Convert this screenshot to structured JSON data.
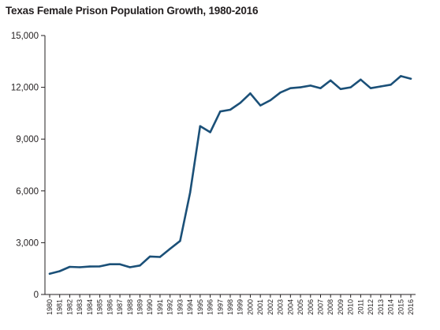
{
  "chart_data": {
    "type": "line",
    "title": "Texas Female Prison Population Growth, 1980-2016",
    "xlabel": "",
    "ylabel": "",
    "ylim": [
      0,
      15000
    ],
    "yticks": [
      "0",
      "3,000",
      "6,000",
      "9,000",
      "12,000",
      "15,000"
    ],
    "ytick_values": [
      0,
      3000,
      6000,
      9000,
      12000,
      15000
    ],
    "grid": false,
    "legend": "none",
    "line_color": "#1b5078",
    "x": [
      "1980",
      "1981",
      "1982",
      "1983",
      "1984",
      "1985",
      "1986",
      "1987",
      "1988",
      "1989",
      "1990",
      "1991",
      "1992",
      "1993",
      "1994",
      "1995",
      "1996",
      "1997",
      "1998",
      "1999",
      "2000",
      "2001",
      "2002",
      "2003",
      "2004",
      "2005",
      "2006",
      "2007",
      "2008",
      "2009",
      "2010",
      "2011",
      "2012",
      "2013",
      "2014",
      "2015",
      "2016"
    ],
    "series": [
      {
        "values": [
          1200,
          1350,
          1600,
          1580,
          1620,
          1630,
          1750,
          1750,
          1580,
          1680,
          2200,
          2170,
          2650,
          3100,
          5900,
          9750,
          9400,
          10600,
          10700,
          11100,
          11650,
          10950,
          11250,
          11700,
          11950,
          12000,
          12100,
          11950,
          12400,
          11900,
          12000,
          12450,
          11950,
          12050,
          12150,
          12650,
          12500
        ]
      }
    ]
  }
}
